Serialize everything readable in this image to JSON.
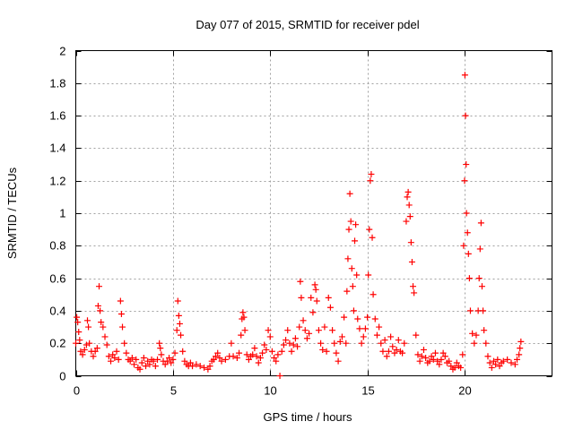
{
  "chart_data": {
    "type": "scatter",
    "title": "Day 077 of 2015, SRMTID for receiver pdel",
    "xlabel": "GPS time / hours",
    "ylabel": "SRMTID / TECUs",
    "xlim": [
      0,
      24.5
    ],
    "ylim": [
      0,
      2
    ],
    "xticks": [
      0,
      5,
      10,
      15,
      20
    ],
    "xtick_labels": [
      "0",
      "5",
      "10",
      "15",
      "20"
    ],
    "yticks": [
      0,
      0.2,
      0.4,
      0.6,
      0.8,
      1.0,
      1.2,
      1.4,
      1.6,
      1.8,
      2.0
    ],
    "ytick_labels": [
      "0",
      "0.2",
      "0.4",
      "0.6",
      "0.8",
      "1",
      "1.2",
      "1.4",
      "1.6",
      "1.8",
      "2"
    ],
    "grid": true,
    "marker": "+",
    "color": "#ff0000",
    "series": [
      {
        "name": "SRMTID",
        "points": [
          [
            0.0,
            0.2
          ],
          [
            0.05,
            0.36
          ],
          [
            0.1,
            0.33
          ],
          [
            0.15,
            0.27
          ],
          [
            0.2,
            0.22
          ],
          [
            0.25,
            0.15
          ],
          [
            0.35,
            0.13
          ],
          [
            0.45,
            0.16
          ],
          [
            0.55,
            0.19
          ],
          [
            0.6,
            0.34
          ],
          [
            0.65,
            0.3
          ],
          [
            0.7,
            0.2
          ],
          [
            0.8,
            0.15
          ],
          [
            0.9,
            0.12
          ],
          [
            1.0,
            0.15
          ],
          [
            1.1,
            0.17
          ],
          [
            1.15,
            0.43
          ],
          [
            1.2,
            0.55
          ],
          [
            1.25,
            0.4
          ],
          [
            1.3,
            0.33
          ],
          [
            1.4,
            0.3
          ],
          [
            1.5,
            0.24
          ],
          [
            1.6,
            0.19
          ],
          [
            1.7,
            0.12
          ],
          [
            1.8,
            0.09
          ],
          [
            1.9,
            0.13
          ],
          [
            2.0,
            0.11
          ],
          [
            2.1,
            0.15
          ],
          [
            2.2,
            0.1
          ],
          [
            2.3,
            0.46
          ],
          [
            2.35,
            0.38
          ],
          [
            2.4,
            0.3
          ],
          [
            2.5,
            0.2
          ],
          [
            2.6,
            0.14
          ],
          [
            2.7,
            0.1
          ],
          [
            2.8,
            0.09
          ],
          [
            2.9,
            0.11
          ],
          [
            3.0,
            0.07
          ],
          [
            3.1,
            0.1
          ],
          [
            3.2,
            0.05
          ],
          [
            3.3,
            0.04
          ],
          [
            3.4,
            0.08
          ],
          [
            3.5,
            0.11
          ],
          [
            3.6,
            0.06
          ],
          [
            3.7,
            0.09
          ],
          [
            3.8,
            0.07
          ],
          [
            3.9,
            0.1
          ],
          [
            4.0,
            0.09
          ],
          [
            4.1,
            0.06
          ],
          [
            4.2,
            0.1
          ],
          [
            4.3,
            0.2
          ],
          [
            4.35,
            0.17
          ],
          [
            4.4,
            0.13
          ],
          [
            4.5,
            0.09
          ],
          [
            4.6,
            0.07
          ],
          [
            4.7,
            0.09
          ],
          [
            4.8,
            0.11
          ],
          [
            4.9,
            0.08
          ],
          [
            5.0,
            0.1
          ],
          [
            5.1,
            0.14
          ],
          [
            5.2,
            0.28
          ],
          [
            5.25,
            0.46
          ],
          [
            5.3,
            0.37
          ],
          [
            5.35,
            0.32
          ],
          [
            5.4,
            0.25
          ],
          [
            5.5,
            0.15
          ],
          [
            5.6,
            0.09
          ],
          [
            5.7,
            0.07
          ],
          [
            5.8,
            0.06
          ],
          [
            5.9,
            0.08
          ],
          [
            6.0,
            0.06
          ],
          [
            6.2,
            0.07
          ],
          [
            6.4,
            0.06
          ],
          [
            6.6,
            0.05
          ],
          [
            6.8,
            0.04
          ],
          [
            6.9,
            0.06
          ],
          [
            7.0,
            0.09
          ],
          [
            7.1,
            0.1
          ],
          [
            7.2,
            0.12
          ],
          [
            7.3,
            0.14
          ],
          [
            7.4,
            0.11
          ],
          [
            7.5,
            0.09
          ],
          [
            7.7,
            0.1
          ],
          [
            7.9,
            0.12
          ],
          [
            8.0,
            0.2
          ],
          [
            8.1,
            0.12
          ],
          [
            8.3,
            0.11
          ],
          [
            8.4,
            0.14
          ],
          [
            8.5,
            0.25
          ],
          [
            8.55,
            0.35
          ],
          [
            8.6,
            0.39
          ],
          [
            8.65,
            0.36
          ],
          [
            8.7,
            0.28
          ],
          [
            8.8,
            0.13
          ],
          [
            8.9,
            0.1
          ],
          [
            9.0,
            0.12
          ],
          [
            9.1,
            0.13
          ],
          [
            9.2,
            0.17
          ],
          [
            9.3,
            0.12
          ],
          [
            9.4,
            0.08
          ],
          [
            9.5,
            0.11
          ],
          [
            9.6,
            0.14
          ],
          [
            9.7,
            0.19
          ],
          [
            9.8,
            0.16
          ],
          [
            9.9,
            0.28
          ],
          [
            10.0,
            0.24
          ],
          [
            10.1,
            0.15
          ],
          [
            10.2,
            0.11
          ],
          [
            10.3,
            0.09
          ],
          [
            10.4,
            0.13
          ],
          [
            10.5,
            0.0
          ],
          [
            10.6,
            0.15
          ],
          [
            10.7,
            0.19
          ],
          [
            10.8,
            0.22
          ],
          [
            10.9,
            0.28
          ],
          [
            11.0,
            0.2
          ],
          [
            11.1,
            0.15
          ],
          [
            11.2,
            0.19
          ],
          [
            11.3,
            0.23
          ],
          [
            11.4,
            0.18
          ],
          [
            11.5,
            0.3
          ],
          [
            11.55,
            0.58
          ],
          [
            11.6,
            0.48
          ],
          [
            11.7,
            0.34
          ],
          [
            11.8,
            0.28
          ],
          [
            11.9,
            0.23
          ],
          [
            12.0,
            0.26
          ],
          [
            12.1,
            0.48
          ],
          [
            12.2,
            0.39
          ],
          [
            12.3,
            0.56
          ],
          [
            12.35,
            0.53
          ],
          [
            12.4,
            0.46
          ],
          [
            12.5,
            0.28
          ],
          [
            12.6,
            0.2
          ],
          [
            12.7,
            0.16
          ],
          [
            12.8,
            0.3
          ],
          [
            12.9,
            0.15
          ],
          [
            13.0,
            0.48
          ],
          [
            13.1,
            0.42
          ],
          [
            13.2,
            0.28
          ],
          [
            13.3,
            0.2
          ],
          [
            13.4,
            0.14
          ],
          [
            13.5,
            0.09
          ],
          [
            13.6,
            0.21
          ],
          [
            13.7,
            0.24
          ],
          [
            13.8,
            0.36
          ],
          [
            13.9,
            0.2
          ],
          [
            13.95,
            0.52
          ],
          [
            14.0,
            0.72
          ],
          [
            14.05,
            0.9
          ],
          [
            14.1,
            1.12
          ],
          [
            14.15,
            0.95
          ],
          [
            14.2,
            0.66
          ],
          [
            14.25,
            0.55
          ],
          [
            14.3,
            0.4
          ],
          [
            14.35,
            0.83
          ],
          [
            14.4,
            0.93
          ],
          [
            14.45,
            0.62
          ],
          [
            14.5,
            0.35
          ],
          [
            14.6,
            0.29
          ],
          [
            14.7,
            0.2
          ],
          [
            14.8,
            0.24
          ],
          [
            14.9,
            0.29
          ],
          [
            15.0,
            0.36
          ],
          [
            15.05,
            0.62
          ],
          [
            15.1,
            0.9
          ],
          [
            15.15,
            1.2
          ],
          [
            15.2,
            1.24
          ],
          [
            15.25,
            0.85
          ],
          [
            15.3,
            0.5
          ],
          [
            15.4,
            0.35
          ],
          [
            15.5,
            0.25
          ],
          [
            15.6,
            0.3
          ],
          [
            15.7,
            0.2
          ],
          [
            15.8,
            0.15
          ],
          [
            15.9,
            0.22
          ],
          [
            16.0,
            0.12
          ],
          [
            16.1,
            0.15
          ],
          [
            16.2,
            0.24
          ],
          [
            16.3,
            0.18
          ],
          [
            16.4,
            0.14
          ],
          [
            16.5,
            0.16
          ],
          [
            16.6,
            0.22
          ],
          [
            16.7,
            0.15
          ],
          [
            16.8,
            0.14
          ],
          [
            16.9,
            0.2
          ],
          [
            17.0,
            0.95
          ],
          [
            17.05,
            1.1
          ],
          [
            17.1,
            1.13
          ],
          [
            17.15,
            1.05
          ],
          [
            17.2,
            0.98
          ],
          [
            17.25,
            0.82
          ],
          [
            17.3,
            0.7
          ],
          [
            17.35,
            0.55
          ],
          [
            17.4,
            0.51
          ],
          [
            17.5,
            0.25
          ],
          [
            17.6,
            0.13
          ],
          [
            17.7,
            0.09
          ],
          [
            17.8,
            0.12
          ],
          [
            17.9,
            0.16
          ],
          [
            18.0,
            0.11
          ],
          [
            18.1,
            0.08
          ],
          [
            18.2,
            0.09
          ],
          [
            18.3,
            0.12
          ],
          [
            18.4,
            0.1
          ],
          [
            18.5,
            0.14
          ],
          [
            18.6,
            0.09
          ],
          [
            18.7,
            0.07
          ],
          [
            18.8,
            0.1
          ],
          [
            18.9,
            0.14
          ],
          [
            19.0,
            0.12
          ],
          [
            19.1,
            0.08
          ],
          [
            19.2,
            0.09
          ],
          [
            19.3,
            0.06
          ],
          [
            19.4,
            0.04
          ],
          [
            19.5,
            0.05
          ],
          [
            19.6,
            0.08
          ],
          [
            19.7,
            0.06
          ],
          [
            19.8,
            0.05
          ],
          [
            19.9,
            0.13
          ],
          [
            19.95,
            0.8
          ],
          [
            20.0,
            1.2
          ],
          [
            20.02,
            1.85
          ],
          [
            20.05,
            1.6
          ],
          [
            20.08,
            1.3
          ],
          [
            20.1,
            1.0
          ],
          [
            20.15,
            0.88
          ],
          [
            20.2,
            0.75
          ],
          [
            20.25,
            0.6
          ],
          [
            20.3,
            0.4
          ],
          [
            20.4,
            0.26
          ],
          [
            20.5,
            0.2
          ],
          [
            20.6,
            0.25
          ],
          [
            20.7,
            0.4
          ],
          [
            20.75,
            0.6
          ],
          [
            20.8,
            0.78
          ],
          [
            20.85,
            0.94
          ],
          [
            20.9,
            0.55
          ],
          [
            20.95,
            0.4
          ],
          [
            21.0,
            0.28
          ],
          [
            21.1,
            0.2
          ],
          [
            21.2,
            0.12
          ],
          [
            21.3,
            0.08
          ],
          [
            21.4,
            0.05
          ],
          [
            21.5,
            0.09
          ],
          [
            21.6,
            0.07
          ],
          [
            21.7,
            0.1
          ],
          [
            21.8,
            0.06
          ],
          [
            21.9,
            0.08
          ],
          [
            22.0,
            0.09
          ],
          [
            22.2,
            0.1
          ],
          [
            22.4,
            0.08
          ],
          [
            22.6,
            0.07
          ],
          [
            22.7,
            0.1
          ],
          [
            22.8,
            0.13
          ],
          [
            22.85,
            0.17
          ],
          [
            22.9,
            0.21
          ]
        ]
      }
    ]
  }
}
